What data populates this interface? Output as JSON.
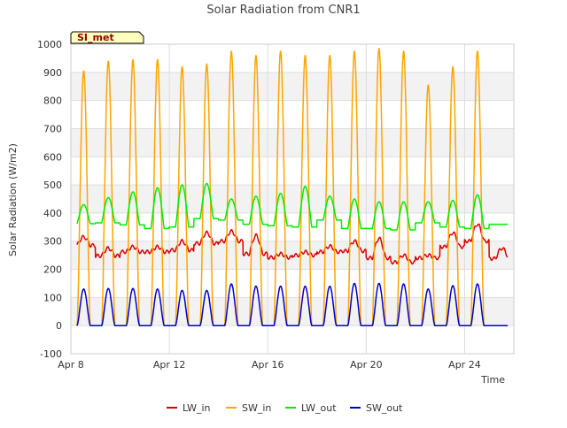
{
  "chart_data": {
    "type": "line",
    "title": "Solar Radiation from CNR1",
    "xlabel": "Time",
    "ylabel": "Solar Radiation (W/m2)",
    "ylim": [
      -100,
      1000
    ],
    "yticks": [
      -100,
      0,
      100,
      200,
      300,
      400,
      500,
      600,
      700,
      800,
      900,
      1000
    ],
    "xlim": [
      "2024-04-08",
      "2024-04-26"
    ],
    "xticks": [
      {
        "date": "2024-04-08",
        "label": "Apr 8"
      },
      {
        "date": "2024-04-12",
        "label": "Apr 12"
      },
      {
        "date": "2024-04-16",
        "label": "Apr 16"
      },
      {
        "date": "2024-04-20",
        "label": "Apr 20"
      },
      {
        "date": "2024-04-24",
        "label": "Apr 24"
      }
    ],
    "station_label": "SI_met",
    "grid": true,
    "background_bands": true,
    "legend_position": "bottom",
    "days": [
      "2024-04-08",
      "2024-04-09",
      "2024-04-10",
      "2024-04-11",
      "2024-04-12",
      "2024-04-13",
      "2024-04-14",
      "2024-04-15",
      "2024-04-16",
      "2024-04-17",
      "2024-04-18",
      "2024-04-19",
      "2024-04-20",
      "2024-04-21",
      "2024-04-22",
      "2024-04-23",
      "2024-04-24",
      "2024-04-25"
    ],
    "start": "2024-04-08T06:00",
    "end": "2024-04-25T18:00",
    "series": [
      {
        "name": "LW_in",
        "color": "#dd0000",
        "daily_base": [
          285,
          248,
          262,
          262,
          268,
          292,
          300,
          255,
          242,
          250,
          262,
          265,
          240,
          225,
          240,
          280,
          300,
          238
        ],
        "daily_peak": [
          315,
          275,
          280,
          280,
          300,
          330,
          335,
          320,
          255,
          262,
          282,
          300,
          310,
          250,
          250,
          330,
          360,
          275
        ]
      },
      {
        "name": "SW_in",
        "color": "#ffa500",
        "daily_base": [
          0,
          0,
          0,
          0,
          0,
          0,
          0,
          0,
          0,
          0,
          0,
          0,
          0,
          0,
          0,
          0,
          0,
          0
        ],
        "daily_peak": [
          905,
          940,
          945,
          945,
          920,
          930,
          975,
          960,
          975,
          960,
          960,
          975,
          985,
          975,
          855,
          920,
          975,
          0
        ]
      },
      {
        "name": "LW_out",
        "color": "#00ee00",
        "daily_base": [
          362,
          365,
          358,
          345,
          350,
          380,
          375,
          360,
          355,
          350,
          375,
          345,
          345,
          340,
          365,
          350,
          345,
          360
        ],
        "daily_peak": [
          430,
          455,
          475,
          490,
          500,
          505,
          450,
          460,
          470,
          495,
          460,
          450,
          440,
          440,
          440,
          445,
          465,
          360
        ]
      },
      {
        "name": "SW_out",
        "color": "#0000cc",
        "daily_base": [
          0,
          0,
          0,
          0,
          0,
          0,
          0,
          0,
          0,
          0,
          0,
          0,
          0,
          0,
          0,
          0,
          0,
          0
        ],
        "daily_peak": [
          130,
          132,
          132,
          130,
          125,
          125,
          148,
          140,
          140,
          140,
          140,
          150,
          150,
          148,
          130,
          142,
          148,
          0
        ]
      }
    ]
  }
}
